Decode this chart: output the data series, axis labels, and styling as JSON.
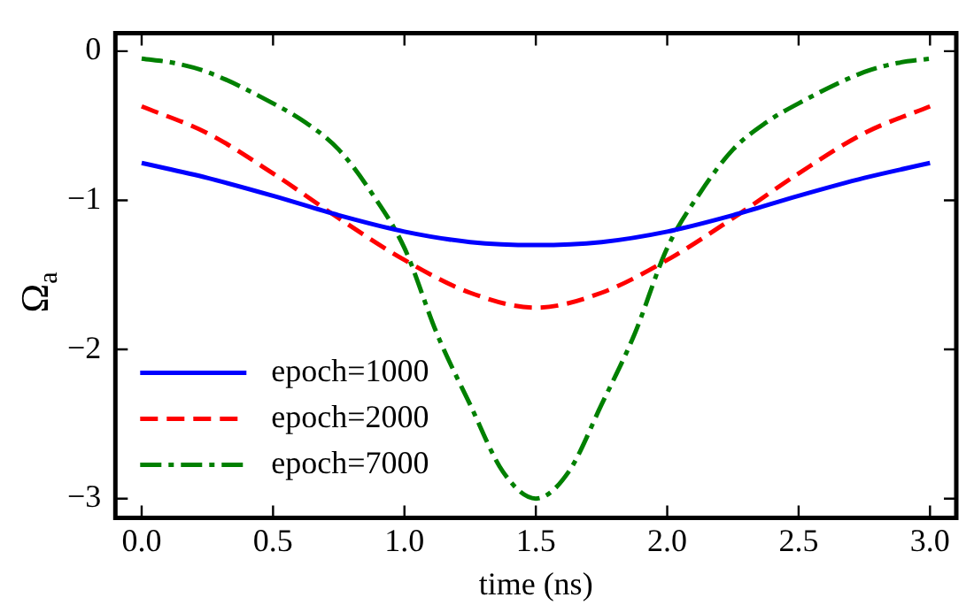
{
  "chart_data": {
    "type": "line",
    "xlabel": "time (ns)",
    "ylabel": "Ω$_{a}$",
    "xlim": [
      -0.1,
      3.1
    ],
    "ylim": [
      -3.13,
      0.12
    ],
    "xticks": [
      {
        "value": 0,
        "label": "0.0"
      },
      {
        "value": 0.5,
        "label": "0.5"
      },
      {
        "value": 1,
        "label": "1.0"
      },
      {
        "value": 1.5,
        "label": "1.5"
      },
      {
        "value": 2,
        "label": "2.0"
      },
      {
        "value": 2.5,
        "label": "2.5"
      },
      {
        "value": 3,
        "label": "3.0"
      }
    ],
    "yticks": [
      {
        "value": -3,
        "label": "−3"
      },
      {
        "value": -2,
        "label": "−2"
      },
      {
        "value": -1,
        "label": "−1"
      },
      0
    ],
    "grid": false,
    "legend": "bottom left",
    "marker": "none",
    "series": [
      {
        "name": "epoch=1000",
        "color": "#0000ff",
        "line_style": "solid",
        "x": [
          0,
          0.25,
          0.5,
          0.75,
          1,
          1.25,
          1.5,
          1.75,
          2,
          2.25,
          2.5,
          2.75,
          3
        ],
        "values": [
          -0.75,
          -0.85,
          -0.97,
          -1.1,
          -1.21,
          -1.28,
          -1.3,
          -1.28,
          -1.21,
          -1.1,
          -0.97,
          -0.85,
          -0.75
        ]
      },
      {
        "name": "epoch=2000",
        "color": "#ff0000",
        "line_style": "dashed",
        "x": [
          0,
          0.25,
          0.5,
          0.75,
          1,
          1.25,
          1.5,
          1.75,
          2,
          2.25,
          2.5,
          2.75,
          3
        ],
        "values": [
          -0.37,
          -0.55,
          -0.82,
          -1.12,
          -1.4,
          -1.62,
          -1.72,
          -1.62,
          -1.4,
          -1.12,
          -0.82,
          -0.55,
          -0.37
        ]
      },
      {
        "name": "epoch=7000",
        "color": "#008000",
        "line_style": "dashdot",
        "x": [
          0,
          0.125,
          0.25,
          0.5,
          0.625,
          0.75,
          0.875,
          1,
          1.125,
          1.25,
          1.375,
          1.5,
          1.625,
          1.75,
          1.875,
          2,
          2.125,
          2.25,
          2.375,
          2.5,
          2.75,
          2.875,
          3
        ],
        "values": [
          -0.05,
          -0.08,
          -0.14,
          -0.35,
          -0.48,
          -0.66,
          -0.95,
          -1.32,
          -1.9,
          -2.37,
          -2.82,
          -3.0,
          -2.82,
          -2.37,
          -1.9,
          -1.32,
          -0.95,
          -0.66,
          -0.48,
          -0.35,
          -0.14,
          -0.08,
          -0.05
        ]
      }
    ]
  }
}
